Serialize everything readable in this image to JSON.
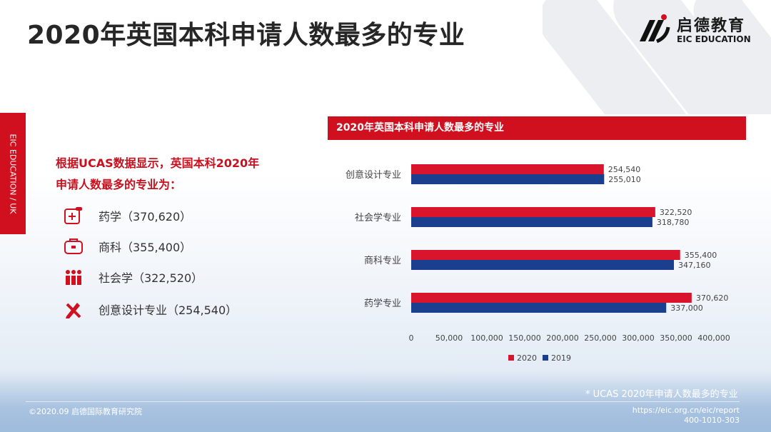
{
  "page": {
    "title": "2020年英国本科申请人数最多的专业",
    "side_tab": "EIC EDUCATION / UK",
    "intro_line1": "根据UCAS数据显示，英国本科2020年",
    "intro_line2": "申请人数最多的专业为：",
    "items": [
      {
        "icon": "medicine-icon",
        "text": "药学（370,620）"
      },
      {
        "icon": "briefcase-icon",
        "text": "商科（355,400）"
      },
      {
        "icon": "people-icon",
        "text": "社会学（322,520）"
      },
      {
        "icon": "pencil-ruler-icon",
        "text": "创意设计专业（254,540）"
      }
    ],
    "footnote": "* UCAS 2020年申请人数最多的专业",
    "copyright": "©2020.09 启德国际教育研究院",
    "url": "https://eic.org.cn/eic/report",
    "phone": "400-1010-303"
  },
  "logo": {
    "cn": "启德教育",
    "en": "EIC EDUCATION"
  },
  "colors": {
    "accent": "#d0101f",
    "series_2020": "#d8152c",
    "series_2019": "#1b3f8f"
  },
  "chart_data": {
    "type": "bar",
    "orientation": "horizontal",
    "title": "2020年英国本科申请人数最多的专业",
    "categories": [
      "创意设计专业",
      "社会学专业",
      "商科专业",
      "药学专业"
    ],
    "series": [
      {
        "name": "2020",
        "values": [
          254540,
          322520,
          355400,
          370620
        ],
        "labels": [
          "254,540",
          "322,520",
          "355,400",
          "370,620"
        ]
      },
      {
        "name": "2019",
        "values": [
          255010,
          318780,
          347160,
          337000
        ],
        "labels": [
          "255,010",
          "318,780",
          "347,160",
          "337,000"
        ]
      }
    ],
    "xlim": [
      0,
      400000
    ],
    "xticks": [
      "0",
      "50,000",
      "100,000",
      "150,000",
      "200,000",
      "250,000",
      "300,000",
      "350,000",
      "400,000"
    ],
    "legend": "bottom",
    "grid": false
  }
}
